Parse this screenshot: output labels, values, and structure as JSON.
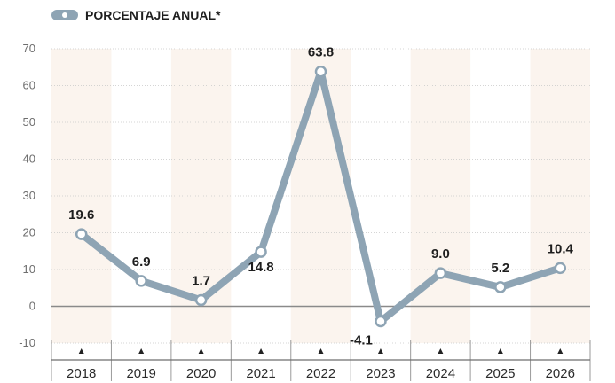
{
  "legend": {
    "label": "PORCENTAJE ANUAL*"
  },
  "colors": {
    "line": "#8ea4b4",
    "band": "#fbf4ee",
    "zero_line": "#8a8a8a",
    "grid": "#c8c8c8"
  },
  "chart_data": {
    "type": "line",
    "categories": [
      "2018",
      "2019",
      "2020",
      "2021",
      "2022",
      "2023",
      "2024",
      "2025",
      "2026"
    ],
    "series": [
      {
        "name": "PORCENTAJE ANUAL*",
        "values": [
          19.6,
          6.9,
          1.7,
          14.8,
          63.8,
          -4.1,
          9.0,
          5.2,
          10.4
        ]
      }
    ],
    "data_labels": [
      "19.6",
      "6.9",
      "1.7",
      "14.8",
      "63.8",
      "-4.1",
      "9.0",
      "5.2",
      "10.4"
    ],
    "ylim": [
      -10,
      70
    ],
    "yticks": [
      "70",
      "60",
      "50",
      "40",
      "30",
      "20",
      "10",
      "0",
      "-10"
    ],
    "ytick_values": [
      70,
      60,
      50,
      40,
      30,
      20,
      10,
      0,
      -10
    ],
    "grid": true,
    "legend_position": "top-left",
    "title": "",
    "xlabel": "",
    "ylabel": ""
  }
}
